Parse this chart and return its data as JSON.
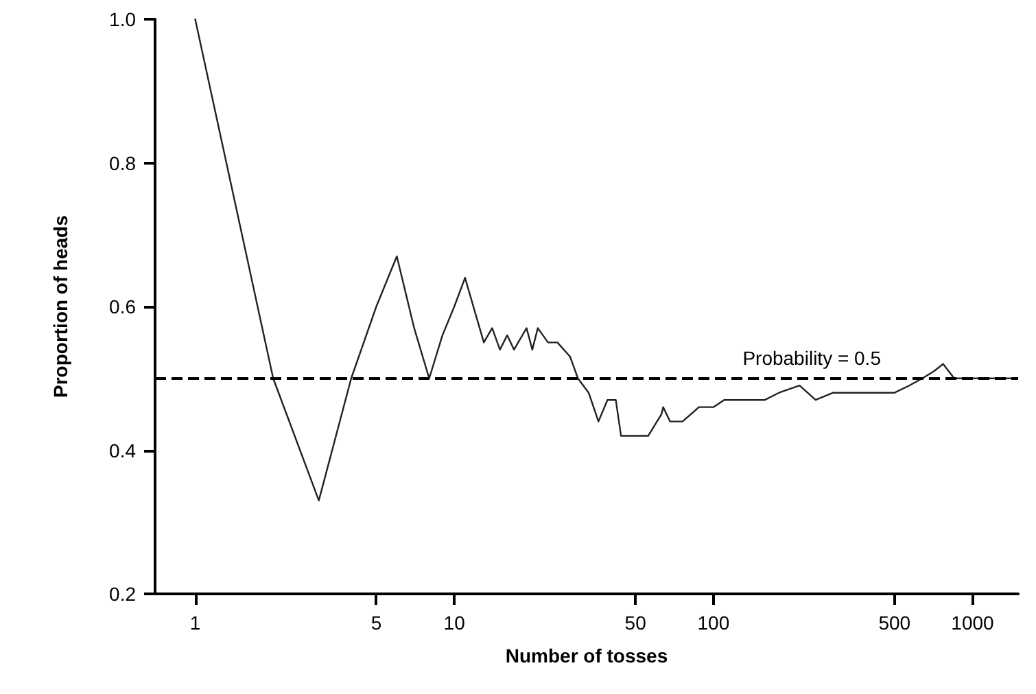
{
  "chart_data": {
    "type": "line",
    "xlabel": "Number of tosses",
    "ylabel": "Proportion of heads",
    "log": "x",
    "grid": false,
    "marker": "none",
    "line_style": "solid",
    "xlim": [
      0.7,
      1500
    ],
    "xticks": [
      1,
      5,
      10,
      50,
      100,
      500,
      1000
    ],
    "ylim": [
      0.2,
      1.0
    ],
    "yticks": [
      {
        "value": 0.2,
        "label": "0.2"
      },
      {
        "value": 0.4,
        "label": "0.4"
      },
      {
        "value": 0.6,
        "label": "0.6"
      },
      {
        "value": 0.8,
        "label": "0.8"
      },
      {
        "value": 1.0,
        "label": "1.0"
      }
    ],
    "series": [
      {
        "color": "#222222",
        "x": [
          1,
          2,
          3,
          4,
          5,
          6,
          7,
          8,
          9,
          10,
          11,
          13,
          14,
          15,
          16,
          17,
          19,
          20,
          21,
          23,
          25,
          28,
          30,
          33,
          36,
          39,
          42,
          44,
          49,
          53,
          56,
          63,
          64,
          68,
          76,
          88,
          100,
          110,
          132,
          158,
          179,
          215,
          248,
          290,
          350,
          420,
          500,
          570,
          640,
          710,
          770,
          850,
          1000,
          1420
        ],
        "values": [
          1.0,
          0.5,
          0.33,
          0.5,
          0.6,
          0.67,
          0.57,
          0.5,
          0.56,
          0.6,
          0.64,
          0.55,
          0.57,
          0.54,
          0.56,
          0.54,
          0.57,
          0.54,
          0.57,
          0.55,
          0.55,
          0.53,
          0.5,
          0.48,
          0.44,
          0.47,
          0.47,
          0.42,
          0.42,
          0.42,
          0.42,
          0.45,
          0.46,
          0.44,
          0.44,
          0.46,
          0.46,
          0.47,
          0.47,
          0.47,
          0.48,
          0.49,
          0.47,
          0.48,
          0.48,
          0.48,
          0.48,
          0.49,
          0.5,
          0.51,
          0.52,
          0.5,
          0.5,
          0.5
        ]
      }
    ],
    "ref_lines": [
      {
        "axis": "y",
        "value": 0.5,
        "label": "Probability = 0.5",
        "color": "#000000",
        "line_style": "dashed"
      }
    ]
  }
}
